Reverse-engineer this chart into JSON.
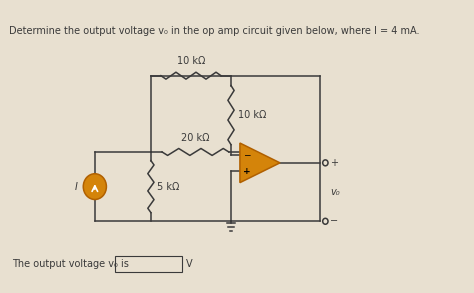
{
  "title_text": "Determine the output voltage v₀ in the op amp circuit given below, where I = 4 mA.",
  "bg_color": "#e8e0d0",
  "circuit_color": "#3a3a3a",
  "op_amp_fill": "#d4840a",
  "op_amp_edge": "#b06000",
  "current_source_fill": "#d4840a",
  "answer_text": "The output voltage v₀ is",
  "unit_text": "V",
  "label_10k_top": "10 kΩ",
  "label_20k": "20 kΩ",
  "label_5k": "5 kΩ",
  "label_10k_right": "10 kΩ",
  "label_vo": "v₀",
  "label_I": "I"
}
